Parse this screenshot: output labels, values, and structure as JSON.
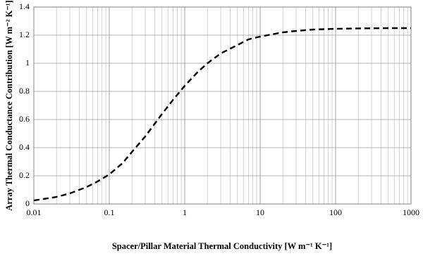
{
  "chart_data": {
    "type": "line",
    "x_label": "Spacer/Pillar Material Thermal Conductivity [W m⁻¹ K⁻¹]",
    "y_label": "Array Thermal Conductance Contribution [W m⁻² K⁻¹]",
    "x": [
      0.01,
      0.02,
      0.03,
      0.05,
      0.07,
      0.1,
      0.15,
      0.2,
      0.3,
      0.5,
      0.7,
      1,
      1.5,
      2,
      3,
      5,
      7,
      10,
      20,
      30,
      50,
      100,
      200,
      500,
      1000
    ],
    "values": [
      0.025,
      0.05,
      0.075,
      0.12,
      0.16,
      0.21,
      0.29,
      0.37,
      0.48,
      0.64,
      0.74,
      0.84,
      0.94,
      1.0,
      1.07,
      1.13,
      1.17,
      1.19,
      1.22,
      1.23,
      1.24,
      1.245,
      1.248,
      1.25,
      1.25
    ],
    "color": "#000000",
    "dashed": true,
    "xlog": true,
    "xlim": [
      0.01,
      1000
    ],
    "xticks": [
      0.01,
      0.1,
      1,
      10,
      100,
      1000
    ],
    "ylim": [
      0,
      1.4
    ],
    "yticks": [
      0,
      0.2,
      0.4,
      0.6,
      0.8,
      1,
      1.2,
      1.4
    ],
    "grid": true,
    "minor_grid": true
  }
}
